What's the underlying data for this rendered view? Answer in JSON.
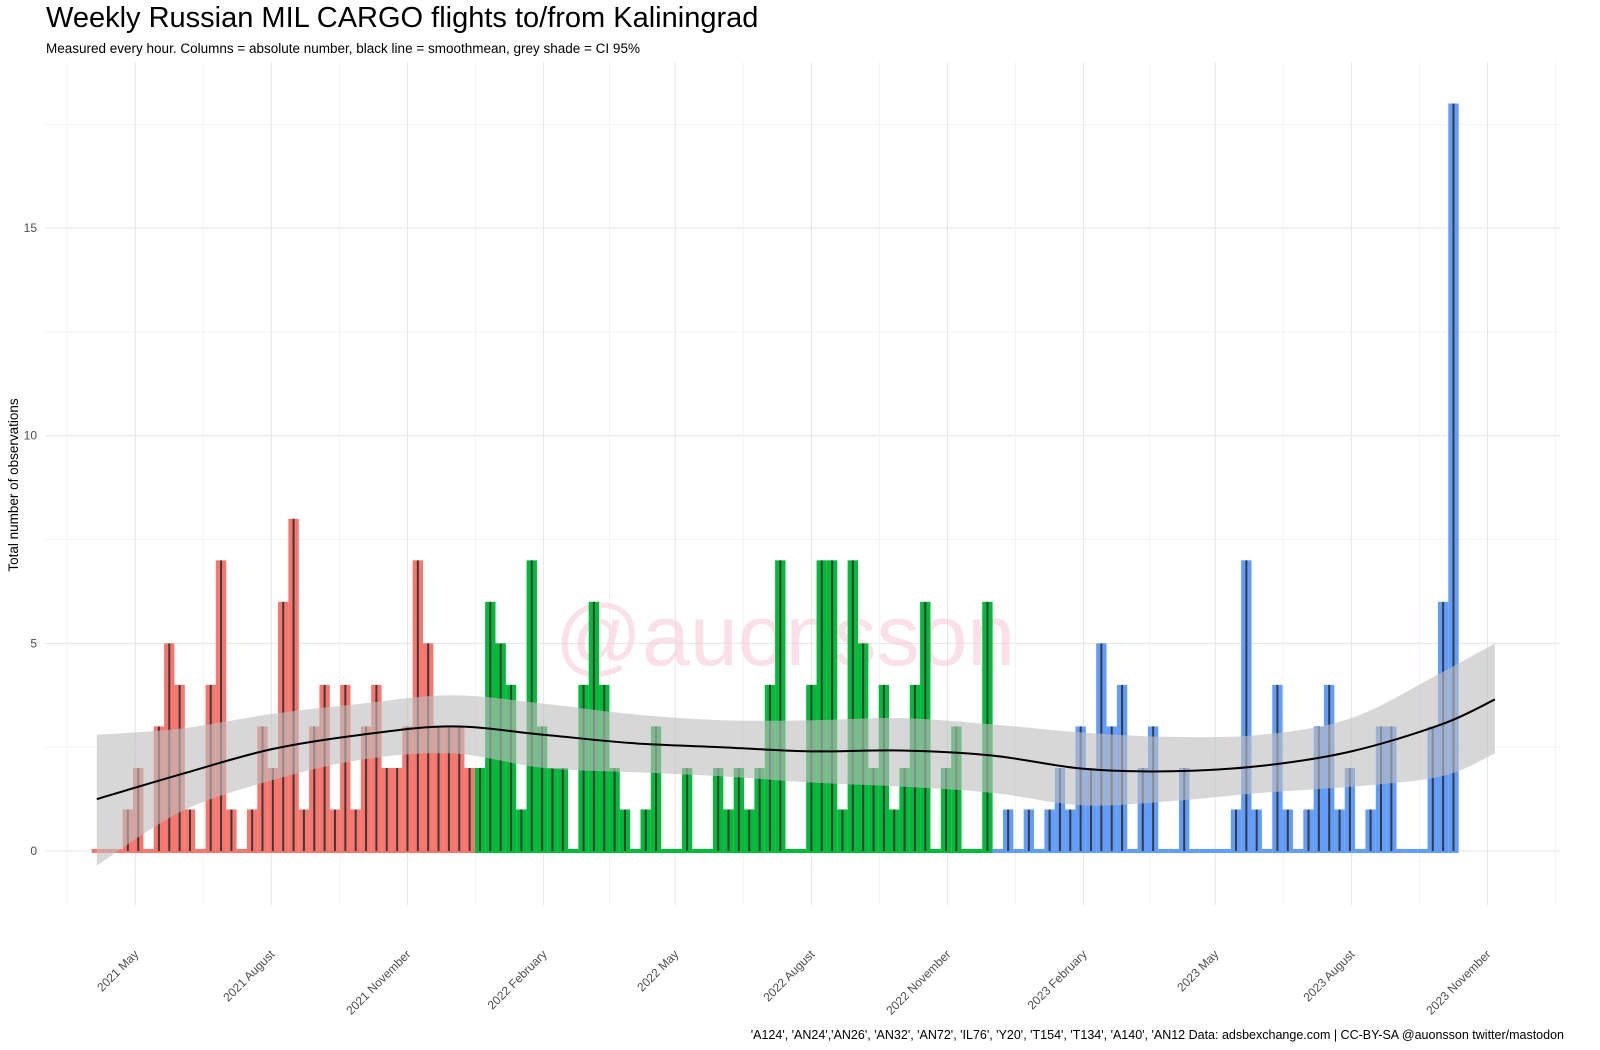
{
  "chart_data": {
    "type": "bar",
    "title": "Weekly Russian MIL CARGO flights to/from Kaliningrad",
    "subtitle": "Measured every hour. Columns = absolute number, black line = smoothmean, grey shade = CI 95%",
    "caption": "'A124', 'AN24','AN26', 'AN32', 'AN72', 'IL76', 'Y20', 'T154', 'T134', 'A140', 'AN12 Data: adsbexchange.com | CC-BY-SA @auonsson twitter/mastodon",
    "watermark": "@auonsson",
    "xlabel": "",
    "ylabel": "Total number of observations",
    "x_start": "2021-04-05",
    "bin": "week",
    "ylim": [
      -1.3,
      19
    ],
    "y_ticks": [
      0,
      5,
      10,
      15
    ],
    "x_ticks": [
      {
        "label": "2021 May",
        "date": "2021-05-01"
      },
      {
        "label": "2021 August",
        "date": "2021-08-01"
      },
      {
        "label": "2021 November",
        "date": "2021-11-01"
      },
      {
        "label": "2022 February",
        "date": "2022-02-01"
      },
      {
        "label": "2022 May",
        "date": "2022-05-01"
      },
      {
        "label": "2022 August",
        "date": "2022-08-01"
      },
      {
        "label": "2022 November",
        "date": "2022-11-01"
      },
      {
        "label": "2023 February",
        "date": "2023-02-01"
      },
      {
        "label": "2023 May",
        "date": "2023-05-01"
      },
      {
        "label": "2023 August",
        "date": "2023-08-01"
      },
      {
        "label": "2023 November",
        "date": "2023-11-01"
      }
    ],
    "grid": true,
    "legend": "none",
    "series": [
      {
        "color": "#F8766D",
        "start": "2021-04-05",
        "values": [
          0,
          0,
          0,
          1,
          2,
          0,
          3,
          5,
          4,
          1,
          0,
          4,
          7,
          1,
          0,
          1,
          3,
          2,
          6,
          8,
          1,
          3,
          4,
          1,
          4,
          1,
          3,
          4,
          2,
          2,
          3,
          7,
          5,
          3,
          3,
          3,
          2
        ]
      },
      {
        "color": "#00BA38",
        "start": "2021-12-20",
        "values": [
          2,
          6,
          5,
          4,
          1,
          7,
          3,
          2,
          2,
          0,
          4,
          6,
          4,
          2,
          1,
          0,
          1,
          3,
          0,
          0,
          2,
          0,
          0,
          2,
          1,
          2,
          1,
          2,
          4,
          7,
          0,
          0,
          4,
          7,
          7,
          1,
          7,
          5,
          2,
          4,
          1,
          2,
          4,
          6,
          0,
          2,
          3,
          0,
          0,
          6
        ]
      },
      {
        "color": "#619CFF",
        "start": "2022-12-05",
        "values": [
          0,
          1,
          0,
          1,
          0,
          1,
          2,
          1,
          3,
          2,
          5,
          3,
          4,
          0,
          2,
          3,
          0,
          0,
          2,
          0,
          0,
          0,
          0,
          1,
          7,
          1,
          0,
          4,
          1,
          0,
          1,
          3,
          4,
          1,
          2,
          0,
          1,
          3,
          3,
          0,
          0,
          0,
          3,
          6,
          18
        ]
      }
    ],
    "smooth": {
      "color": "#000000",
      "ci_color": "#bfbfbf",
      "x": [
        "2021-04-05",
        "2021-06-01",
        "2021-08-01",
        "2021-10-01",
        "2021-12-01",
        "2022-02-01",
        "2022-04-01",
        "2022-06-01",
        "2022-08-01",
        "2022-10-01",
        "2022-12-01",
        "2023-02-01",
        "2023-04-01",
        "2023-06-01",
        "2023-08-01",
        "2023-10-01",
        "2023-11-06"
      ],
      "y": [
        1.25,
        1.85,
        2.45,
        2.8,
        3.0,
        2.8,
        2.6,
        2.5,
        2.4,
        2.42,
        2.3,
        1.98,
        1.92,
        2.05,
        2.4,
        3.05,
        3.65
      ],
      "lower": [
        -0.35,
        0.95,
        1.7,
        2.2,
        2.35,
        2.0,
        1.9,
        1.8,
        1.65,
        1.55,
        1.4,
        1.1,
        1.2,
        1.4,
        1.55,
        1.8,
        2.35
      ],
      "upper": [
        2.8,
        2.95,
        3.3,
        3.55,
        3.75,
        3.55,
        3.3,
        3.15,
        3.15,
        3.2,
        3.05,
        2.85,
        2.75,
        2.8,
        3.2,
        4.3,
        5.0
      ]
    }
  }
}
